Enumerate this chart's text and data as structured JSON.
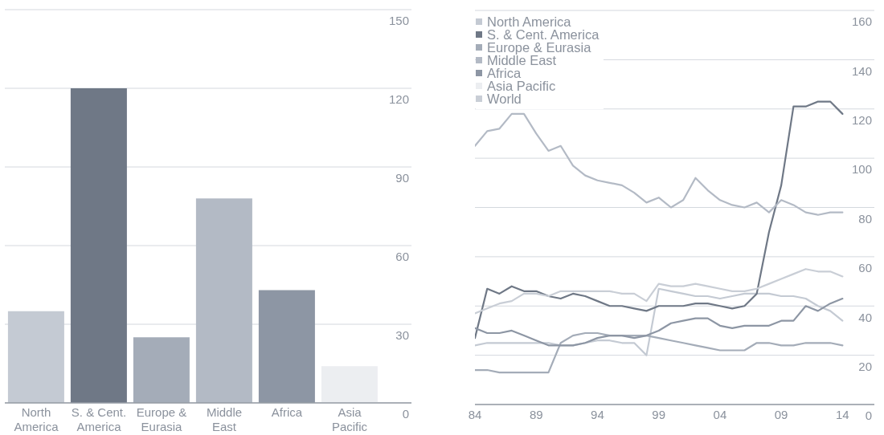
{
  "chart_data": [
    {
      "type": "bar",
      "categories": [
        "North America",
        "S. & Cent. America",
        "Europe & Eurasia",
        "Middle East",
        "Africa",
        "Asia Pacific"
      ],
      "values": [
        35,
        120,
        25,
        78,
        43,
        14
      ],
      "colors": [
        "#c4cad3",
        "#6f7886",
        "#a4acb8",
        "#b3bac5",
        "#8d96a4",
        "#eceef1"
      ],
      "ylim": [
        0,
        150
      ],
      "yticks": [
        0,
        30,
        60,
        90,
        120,
        150
      ],
      "grid": "y"
    },
    {
      "type": "line",
      "x": [
        1984,
        1985,
        1986,
        1987,
        1988,
        1989,
        1990,
        1991,
        1992,
        1993,
        1994,
        1995,
        1996,
        1997,
        1998,
        1999,
        2000,
        2001,
        2002,
        2003,
        2004,
        2005,
        2006,
        2007,
        2008,
        2009,
        2010,
        2011,
        2012,
        2013,
        2014
      ],
      "series": [
        {
          "name": "North America",
          "color": "#c4cad3",
          "values": [
            24,
            25,
            25,
            25,
            25,
            25,
            25,
            24,
            24,
            25,
            26,
            26,
            25,
            25,
            20,
            47,
            46,
            45,
            44,
            44,
            43,
            44,
            45,
            45,
            45,
            44,
            44,
            43,
            40,
            38,
            34
          ]
        },
        {
          "name": "S. & Cent. America",
          "color": "#6f7886",
          "values": [
            27,
            47,
            45,
            48,
            46,
            46,
            44,
            43,
            45,
            44,
            42,
            40,
            40,
            39,
            38,
            40,
            40,
            40,
            41,
            41,
            40,
            39,
            40,
            45,
            70,
            89,
            121,
            121,
            123,
            123,
            118
          ]
        },
        {
          "name": "Europe & Eurasia",
          "color": "#a4acb8",
          "values": [
            14,
            14,
            13,
            13,
            13,
            13,
            13,
            25,
            28,
            29,
            29,
            28,
            28,
            28,
            28,
            27,
            26,
            25,
            24,
            23,
            22,
            22,
            22,
            25,
            25,
            24,
            24,
            25,
            25,
            25,
            24
          ]
        },
        {
          "name": "Middle East",
          "color": "#b3bac5",
          "values": [
            105,
            111,
            112,
            118,
            118,
            110,
            103,
            105,
            97,
            93,
            91,
            90,
            89,
            86,
            82,
            84,
            80,
            83,
            92,
            87,
            83,
            81,
            80,
            82,
            78,
            83,
            81,
            78,
            77,
            78,
            78
          ]
        },
        {
          "name": "Africa",
          "color": "#8d96a4",
          "values": [
            31,
            29,
            29,
            30,
            28,
            26,
            24,
            24,
            24,
            25,
            27,
            28,
            28,
            27,
            28,
            30,
            33,
            34,
            35,
            35,
            32,
            31,
            32,
            32,
            32,
            34,
            34,
            40,
            38,
            41,
            43
          ]
        },
        {
          "name": "Asia Pacific",
          "color": "#eceef1",
          "values": [
            null,
            null,
            null,
            null,
            null,
            null,
            null,
            null,
            null,
            null,
            null,
            null,
            null,
            null,
            null,
            null,
            null,
            null,
            null,
            null,
            null,
            null,
            null,
            null,
            null,
            null,
            null,
            null,
            null,
            null,
            null
          ]
        },
        {
          "name": "World",
          "color": "#c9ced6",
          "values": [
            37,
            39,
            41,
            42,
            45,
            45,
            44,
            46,
            46,
            46,
            46,
            46,
            45,
            45,
            42,
            49,
            48,
            48,
            49,
            48,
            47,
            46,
            46,
            47,
            49,
            51,
            53,
            55,
            54,
            54,
            52
          ]
        }
      ],
      "xlim": [
        1984,
        2016.6
      ],
      "xticks": [
        {
          "value": 1984,
          "label": "84"
        },
        {
          "value": 1989,
          "label": "89"
        },
        {
          "value": 1994,
          "label": "94"
        },
        {
          "value": 1999,
          "label": "99"
        },
        {
          "value": 2004,
          "label": "04"
        },
        {
          "value": 2009,
          "label": "09"
        },
        {
          "value": 2014,
          "label": "14"
        }
      ],
      "ylim": [
        0,
        160
      ],
      "yticks": [
        0,
        20,
        40,
        60,
        80,
        100,
        120,
        140,
        160
      ],
      "grid": "y",
      "legend": "top left"
    }
  ]
}
